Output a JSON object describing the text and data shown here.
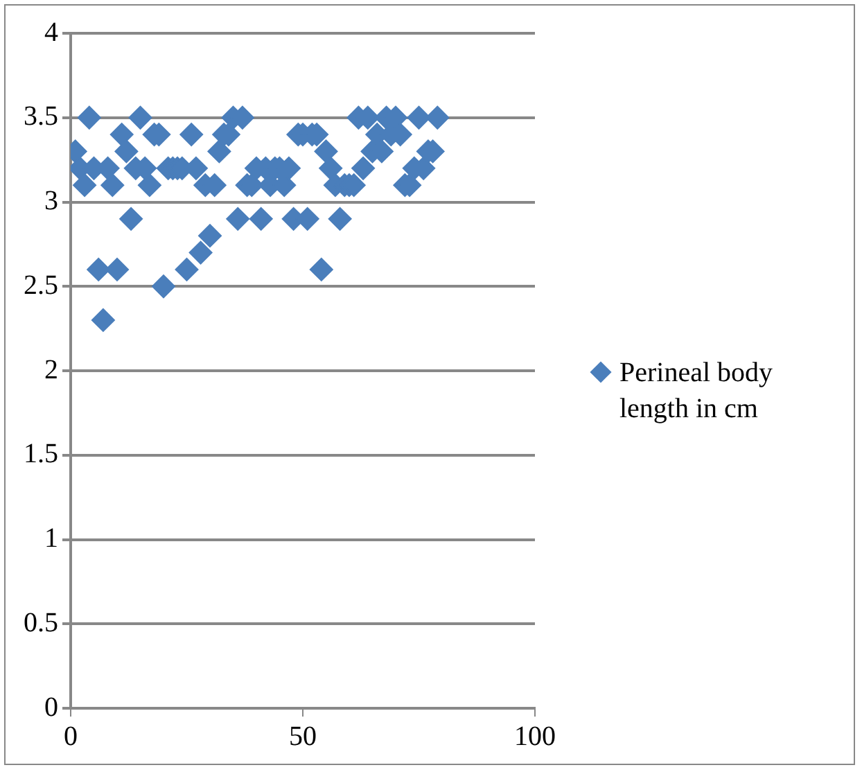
{
  "chart_data": {
    "type": "scatter",
    "x": [
      1,
      2,
      3,
      4,
      5,
      6,
      7,
      8,
      9,
      10,
      11,
      12,
      13,
      14,
      15,
      16,
      17,
      18,
      19,
      20,
      21,
      22,
      23,
      24,
      25,
      26,
      27,
      28,
      29,
      30,
      31,
      32,
      33,
      34,
      35,
      36,
      37,
      38,
      39,
      40,
      41,
      42,
      43,
      44,
      45,
      46,
      47,
      48,
      49,
      50,
      51,
      52,
      53,
      54,
      55,
      56,
      57,
      58,
      59,
      60,
      61,
      62,
      63,
      64,
      65,
      66,
      67,
      68,
      69,
      70,
      71,
      72,
      73,
      74,
      75,
      76,
      77,
      78,
      79
    ],
    "series": [
      {
        "name": "Perineal body length in cm",
        "color": "#4a7ebb",
        "values": [
          3.3,
          3.2,
          3.1,
          3.5,
          3.2,
          2.6,
          2.3,
          3.2,
          3.1,
          2.6,
          3.4,
          3.3,
          2.9,
          3.2,
          3.5,
          3.2,
          3.1,
          3.4,
          3.4,
          2.5,
          3.2,
          3.2,
          3.2,
          3.2,
          2.6,
          3.4,
          3.2,
          2.7,
          3.1,
          2.8,
          3.1,
          3.3,
          3.4,
          3.4,
          3.5,
          2.9,
          3.5,
          3.1,
          3.1,
          3.2,
          2.9,
          3.2,
          3.1,
          3.2,
          3.2,
          3.1,
          3.2,
          2.9,
          3.4,
          3.4,
          2.9,
          3.4,
          3.4,
          2.6,
          3.3,
          3.2,
          3.1,
          2.9,
          3.1,
          3.1,
          3.1,
          3.5,
          3.2,
          3.5,
          3.3,
          3.4,
          3.3,
          3.5,
          3.4,
          3.5,
          3.4,
          3.1,
          3.1,
          3.2,
          3.5,
          3.2,
          3.3,
          3.3,
          3.5
        ]
      }
    ],
    "xlim": [
      0,
      100
    ],
    "xticks": [
      0,
      50,
      100
    ],
    "ylim": [
      0,
      4
    ],
    "yticks": [
      0,
      0.5,
      1,
      1.5,
      2,
      2.5,
      3,
      3.5,
      4
    ],
    "grid": "y",
    "legend": "right",
    "marker": "diamond"
  }
}
